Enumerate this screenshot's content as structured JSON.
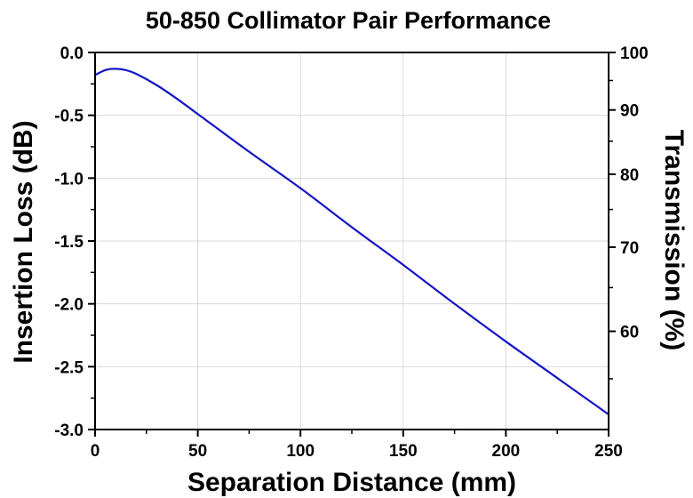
{
  "chart_data": {
    "type": "line",
    "title": "50-850 Collimator Pair Performance",
    "xlabel": "Separation Distance (mm)",
    "ylabel": "Insertion Loss (dB)",
    "y2label": "Transmission (%)",
    "xlim": [
      0,
      250
    ],
    "ylim": [
      -3.0,
      0.0
    ],
    "xticks": [
      0,
      50,
      100,
      150,
      200,
      250
    ],
    "xtick_labels": [
      "0",
      "50",
      "100",
      "150",
      "200",
      "250"
    ],
    "yticks": [
      0.0,
      -0.5,
      -1.0,
      -1.5,
      -2.0,
      -2.5,
      -3.0
    ],
    "ytick_labels": [
      "0.0",
      "-0.5",
      "-1.0",
      "-1.5",
      "-2.0",
      "-2.5",
      "-3.0"
    ],
    "y2ticks": [
      100,
      90,
      80,
      70,
      60
    ],
    "y2tick_labels": [
      "100",
      "90",
      "80",
      "70",
      "60"
    ],
    "grid": true,
    "line_color": "#1414c8",
    "series": [
      {
        "x": [
          0,
          5,
          10,
          15,
          20,
          30,
          40,
          50,
          75,
          100,
          125,
          150,
          175,
          200,
          225,
          250
        ],
        "y": [
          -0.18,
          -0.14,
          -0.13,
          -0.14,
          -0.17,
          -0.26,
          -0.37,
          -0.49,
          -0.79,
          -1.08,
          -1.39,
          -1.69,
          -2.0,
          -2.3,
          -2.59,
          -2.88
        ]
      }
    ]
  }
}
